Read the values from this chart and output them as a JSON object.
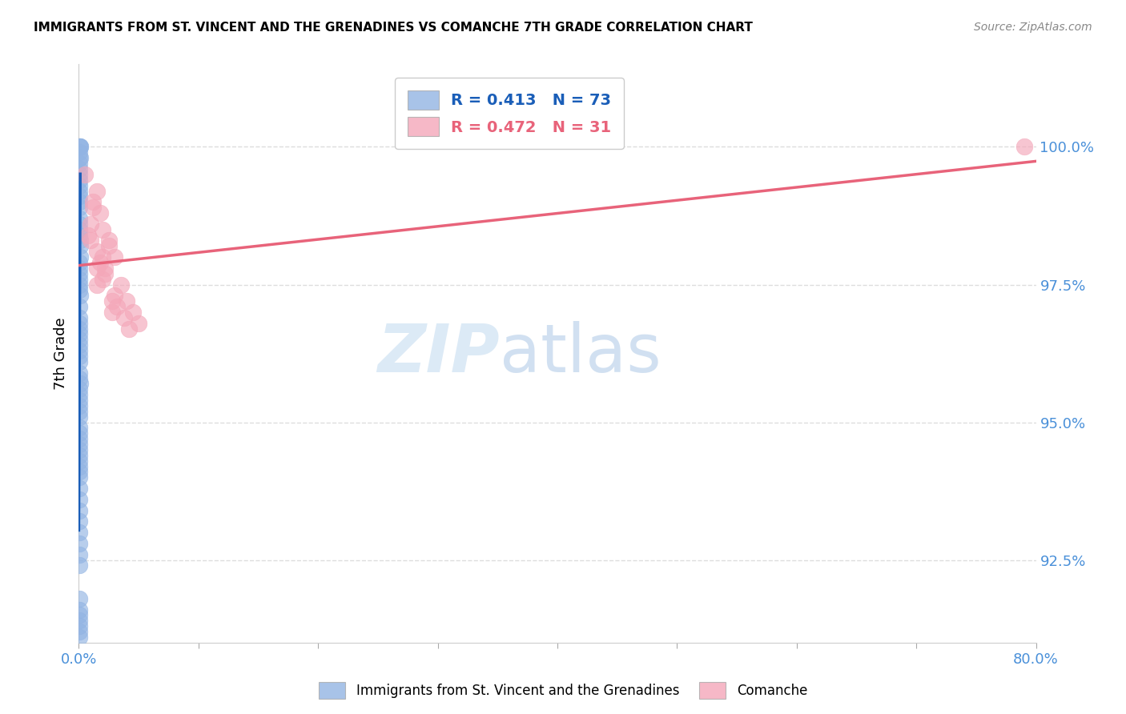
{
  "title": "IMMIGRANTS FROM ST. VINCENT AND THE GRENADINES VS COMANCHE 7TH GRADE CORRELATION CHART",
  "source": "Source: ZipAtlas.com",
  "ylabel": "7th Grade",
  "xlim": [
    0.0,
    80.0
  ],
  "ylim": [
    91.0,
    101.5
  ],
  "yticks": [
    92.5,
    95.0,
    97.5,
    100.0
  ],
  "ytick_labels": [
    "92.5%",
    "95.0%",
    "97.5%",
    "100.0%"
  ],
  "xtick_positions": [
    0,
    10,
    20,
    30,
    40,
    50,
    60,
    70,
    80
  ],
  "xtick_labels": [
    "0.0%",
    "",
    "",
    "",
    "",
    "",
    "",
    "",
    "80.0%"
  ],
  "blue_R": 0.413,
  "blue_N": 73,
  "pink_R": 0.472,
  "pink_N": 31,
  "blue_label": "Immigrants from St. Vincent and the Grenadines",
  "pink_label": "Comanche",
  "blue_color": "#92b4e3",
  "pink_color": "#f4a7b9",
  "blue_line_color": "#1a5eb8",
  "pink_line_color": "#e8637a",
  "axis_text_color": "#4a90d9",
  "blue_x": [
    0.05,
    0.08,
    0.06,
    0.07,
    0.09,
    0.04,
    0.06,
    0.05,
    0.07,
    0.08,
    0.04,
    0.05,
    0.06,
    0.07,
    0.04,
    0.05,
    0.06,
    0.07,
    0.08,
    0.09,
    0.05,
    0.06,
    0.07,
    0.08,
    0.04,
    0.05,
    0.06,
    0.04,
    0.05,
    0.07,
    0.06,
    0.08,
    0.05,
    0.04,
    0.06,
    0.07,
    0.05,
    0.04,
    0.06,
    0.05,
    0.07,
    0.08,
    0.06,
    0.05,
    0.04,
    0.06,
    0.07,
    0.05,
    0.06,
    0.07,
    0.04,
    0.05,
    0.06,
    0.04,
    0.05,
    0.06,
    0.07,
    0.04,
    0.05,
    0.06,
    0.07,
    0.05,
    0.06,
    0.04,
    0.05,
    0.06,
    0.04,
    0.05,
    0.06,
    0.07,
    0.04,
    0.05,
    0.06
  ],
  "blue_y": [
    100.0,
    100.0,
    99.9,
    99.8,
    100.0,
    99.7,
    99.6,
    99.5,
    99.4,
    99.8,
    99.3,
    99.2,
    99.1,
    99.0,
    98.9,
    98.7,
    98.6,
    98.4,
    98.2,
    98.0,
    97.9,
    97.7,
    97.5,
    97.3,
    97.1,
    96.9,
    96.7,
    96.5,
    96.3,
    96.1,
    95.9,
    95.7,
    95.5,
    95.3,
    95.1,
    94.9,
    94.7,
    94.5,
    94.3,
    94.1,
    98.5,
    98.3,
    97.8,
    97.6,
    97.4,
    96.8,
    96.6,
    96.4,
    96.2,
    95.8,
    95.6,
    95.4,
    95.2,
    94.8,
    94.6,
    94.4,
    94.2,
    94.0,
    93.8,
    93.6,
    93.4,
    93.2,
    93.0,
    92.8,
    92.6,
    92.4,
    91.8,
    91.6,
    91.4,
    91.2,
    91.5,
    91.3,
    91.1
  ],
  "pink_x": [
    0.5,
    1.2,
    1.5,
    2.0,
    1.8,
    2.5,
    3.0,
    1.0,
    0.8,
    1.5,
    2.2,
    3.5,
    4.0,
    2.8,
    1.2,
    2.0,
    3.0,
    4.5,
    5.0,
    2.5,
    1.8,
    3.2,
    2.0,
    1.5,
    3.8,
    2.2,
    1.0,
    2.8,
    4.2,
    1.5,
    79.0
  ],
  "pink_y": [
    99.5,
    99.0,
    99.2,
    98.5,
    98.8,
    98.3,
    98.0,
    98.6,
    98.4,
    98.1,
    97.8,
    97.5,
    97.2,
    97.0,
    98.9,
    97.6,
    97.3,
    97.0,
    96.8,
    98.2,
    97.9,
    97.1,
    98.0,
    97.5,
    96.9,
    97.7,
    98.3,
    97.2,
    96.7,
    97.8,
    100.0
  ],
  "blue_trend_x": [
    0.0,
    0.12
  ],
  "pink_trend_x": [
    0.0,
    80.0
  ]
}
